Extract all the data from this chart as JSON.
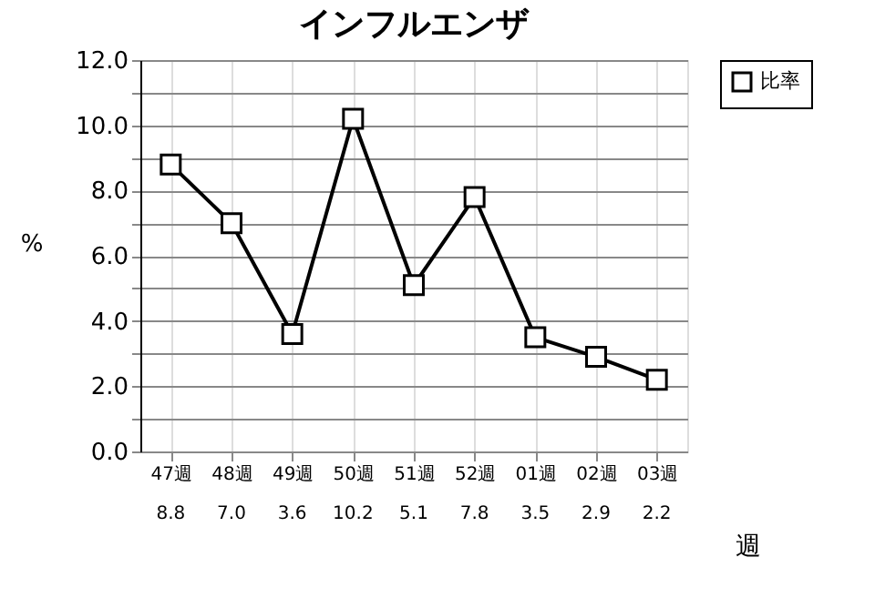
{
  "chart_data": {
    "type": "line",
    "title": "インフルエンザ",
    "ylabel": "%",
    "xlabel": "週",
    "categories": [
      "47週",
      "48週",
      "49週",
      "50週",
      "51週",
      "52週",
      "01週",
      "02週",
      "03週"
    ],
    "series": [
      {
        "name": "比率",
        "color": "#000000",
        "values": [
          8.8,
          7.0,
          3.6,
          10.2,
          5.1,
          7.8,
          3.5,
          2.9,
          2.2
        ],
        "value_labels": [
          "8.8",
          "7.0",
          "3.6",
          "10.2",
          "5.1",
          "7.8",
          "3.5",
          "2.9",
          "2.2"
        ]
      }
    ],
    "ylim": [
      0,
      12
    ],
    "yticks": [
      {
        "value": 0,
        "label": "0.0"
      },
      {
        "value": 1,
        "label": null
      },
      {
        "value": 2,
        "label": "2.0"
      },
      {
        "value": 3,
        "label": null
      },
      {
        "value": 4,
        "label": "4.0"
      },
      {
        "value": 5,
        "label": null
      },
      {
        "value": 6,
        "label": "6.0"
      },
      {
        "value": 7,
        "label": null
      },
      {
        "value": 8,
        "label": "8.0"
      },
      {
        "value": 9,
        "label": null
      },
      {
        "value": 10,
        "label": "10.0"
      },
      {
        "value": 11,
        "label": null
      },
      {
        "value": 12,
        "label": "12.0"
      }
    ],
    "grid": true,
    "legend": "right",
    "marker": "square",
    "line_style": "solid"
  }
}
